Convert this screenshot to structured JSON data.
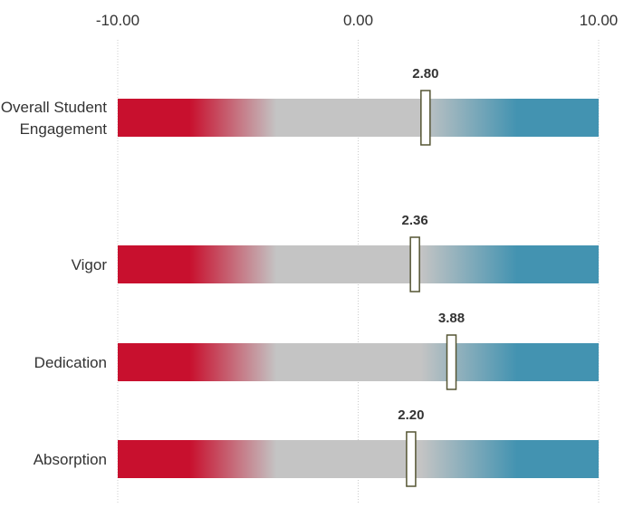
{
  "chart_data": {
    "type": "bar",
    "title": "",
    "xlabel": "",
    "ylabel": "",
    "xlim": [
      -10,
      10
    ],
    "x_ticks": [
      {
        "value": -10,
        "label": "-10.00"
      },
      {
        "value": 0,
        "label": "0.00"
      },
      {
        "value": 10,
        "label": "10.00"
      }
    ],
    "grid": true,
    "categories": [
      {
        "label_lines": [
          "Overall Student",
          "Engagement"
        ],
        "value": 2.8,
        "value_label": "2.80"
      },
      {
        "label_lines": [
          "Vigor"
        ],
        "value": 2.36,
        "value_label": "2.36"
      },
      {
        "label_lines": [
          "Dedication"
        ],
        "value": 3.88,
        "value_label": "3.88"
      },
      {
        "label_lines": [
          "Absorption"
        ],
        "value": 2.2,
        "value_label": "2.20"
      }
    ],
    "colors": {
      "negative": "#c8102e",
      "neutral": "#c4c4c4",
      "positive": "#4393b1",
      "marker_fill": "#ffffff",
      "marker_stroke": "#555533",
      "text": "#333333",
      "grid": "#cccccc"
    }
  }
}
